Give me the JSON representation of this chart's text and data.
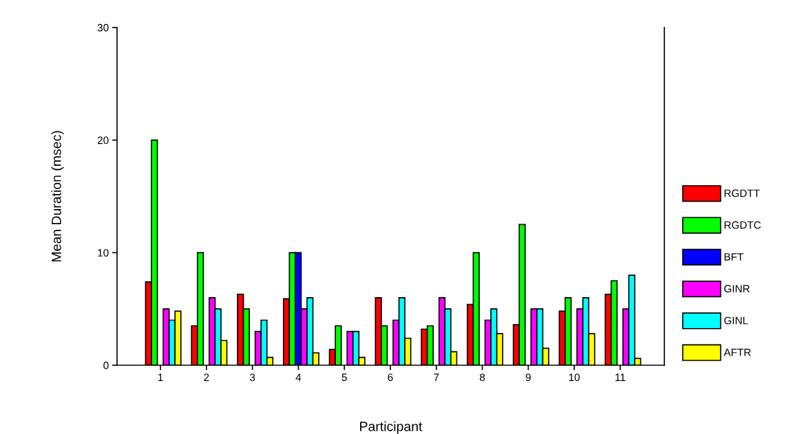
{
  "chart_data": {
    "type": "bar",
    "xlabel": "Participant",
    "ylabel": "Mean Duration (msec)",
    "categories": [
      "1",
      "2",
      "3",
      "4",
      "5",
      "6",
      "7",
      "8",
      "9",
      "10",
      "11"
    ],
    "series": [
      {
        "name": "RGDTT",
        "color": "#ff0000",
        "values": [
          7.4,
          3.5,
          6.3,
          5.9,
          1.4,
          6,
          3.2,
          5.4,
          3.6,
          4.8,
          6.3
        ]
      },
      {
        "name": "RGDTC",
        "color": "#00ff00",
        "values": [
          20,
          10,
          5,
          10,
          3.5,
          3.5,
          3.5,
          10,
          12.5,
          6,
          7.5
        ]
      },
      {
        "name": "BFT",
        "color": "#0000ff",
        "values": [
          null,
          null,
          null,
          10,
          null,
          null,
          null,
          null,
          null,
          null,
          null
        ]
      },
      {
        "name": "GINR",
        "color": "#ff00ff",
        "values": [
          5,
          6,
          3,
          5,
          3,
          4,
          6,
          4,
          5,
          5,
          5
        ]
      },
      {
        "name": "GINL",
        "color": "#00ffff",
        "values": [
          4,
          5,
          4,
          6,
          3,
          6,
          5,
          5,
          5,
          6,
          8
        ]
      },
      {
        "name": "AFTR",
        "color": "#ffff00",
        "values": [
          4.8,
          2.2,
          0.7,
          1.1,
          0.7,
          2.4,
          1.2,
          2.8,
          1.5,
          2.8,
          0.6
        ]
      }
    ],
    "ylim": [
      0,
      30
    ],
    "yticks": [
      0,
      10,
      20,
      30
    ],
    "grid": false,
    "legend": "right"
  }
}
